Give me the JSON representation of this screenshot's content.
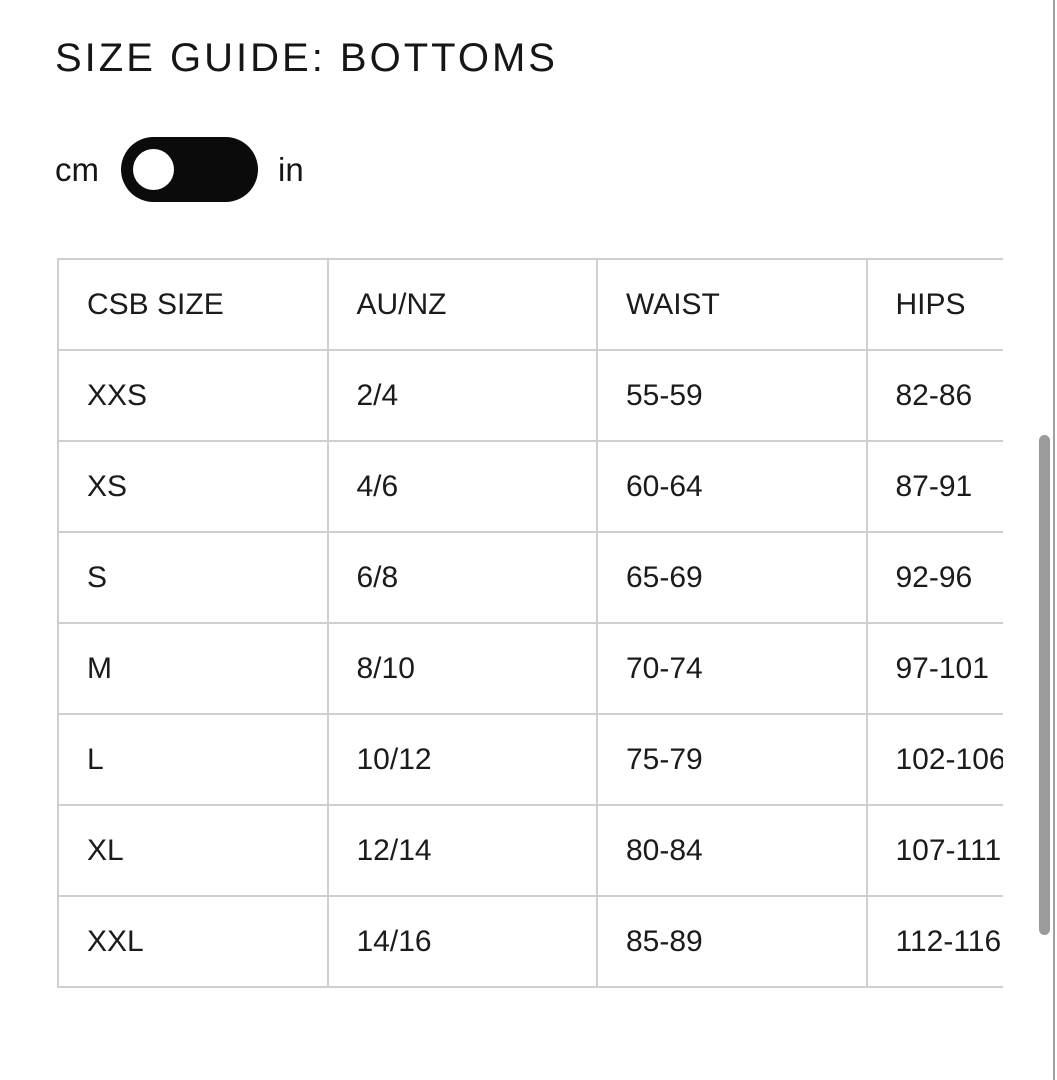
{
  "page": {
    "title": "SIZE GUIDE: BOTTOMS"
  },
  "unit_toggle": {
    "left_label": "cm",
    "right_label": "in",
    "selected": "cm"
  },
  "table": {
    "columns": [
      "CSB SIZE",
      "AU/NZ",
      "WAIST",
      "HIPS"
    ],
    "rows": [
      [
        "XXS",
        "2/4",
        "55-59",
        "82-86"
      ],
      [
        "XS",
        "4/6",
        "60-64",
        "87-91"
      ],
      [
        "S",
        "6/8",
        "65-69",
        "92-96"
      ],
      [
        "M",
        "8/10",
        "70-74",
        "97-101"
      ],
      [
        "L",
        "10/12",
        "75-79",
        "102-106"
      ],
      [
        "XL",
        "12/14",
        "80-84",
        "107-111"
      ],
      [
        "XXL",
        "14/16",
        "85-89",
        "112-116"
      ]
    ]
  },
  "colors": {
    "toggle_bg": "#0b0b0b",
    "toggle_knob": "#ffffff",
    "table_border": "#cfcfcf",
    "scrollbar_thumb": "#9b9b9b",
    "page_edge": "#a0a0a0",
    "text": "#1a1a1a"
  }
}
